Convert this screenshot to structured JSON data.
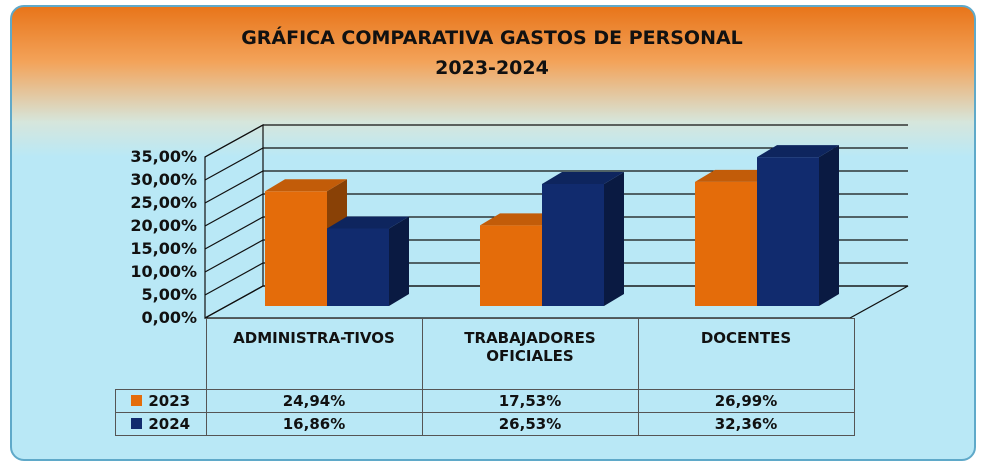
{
  "chart_data": {
    "type": "bar3d",
    "title": "GRÁFICA COMPARATIVA GASTOS DE PERSONAL",
    "subtitle": "2023-2024",
    "categories": [
      "ADMINISTRA-TIVOS",
      "TRABAJADORES OFICIALES",
      "DOCENTES"
    ],
    "series": [
      {
        "name": "2023",
        "color": "#e46c0a",
        "values": [
          24.94,
          17.53,
          26.99
        ],
        "value_labels": [
          "24,94%",
          "17,53%",
          "26,99%"
        ]
      },
      {
        "name": "2024",
        "color": "#112b6e",
        "values": [
          16.86,
          26.53,
          32.36
        ],
        "value_labels": [
          "16,86%",
          "26,53%",
          "32,36%"
        ]
      }
    ],
    "ylim": [
      0,
      35
    ],
    "yticks": [
      {
        "value": 0,
        "label": "0,00%"
      },
      {
        "value": 5,
        "label": "5,00%"
      },
      {
        "value": 10,
        "label": "10,00%"
      },
      {
        "value": 15,
        "label": "15,00%"
      },
      {
        "value": 20,
        "label": "20,00%"
      },
      {
        "value": 25,
        "label": "25,00%"
      },
      {
        "value": 30,
        "label": "30,00%"
      },
      {
        "value": 35,
        "label": "35,00%"
      }
    ],
    "grid": true
  }
}
